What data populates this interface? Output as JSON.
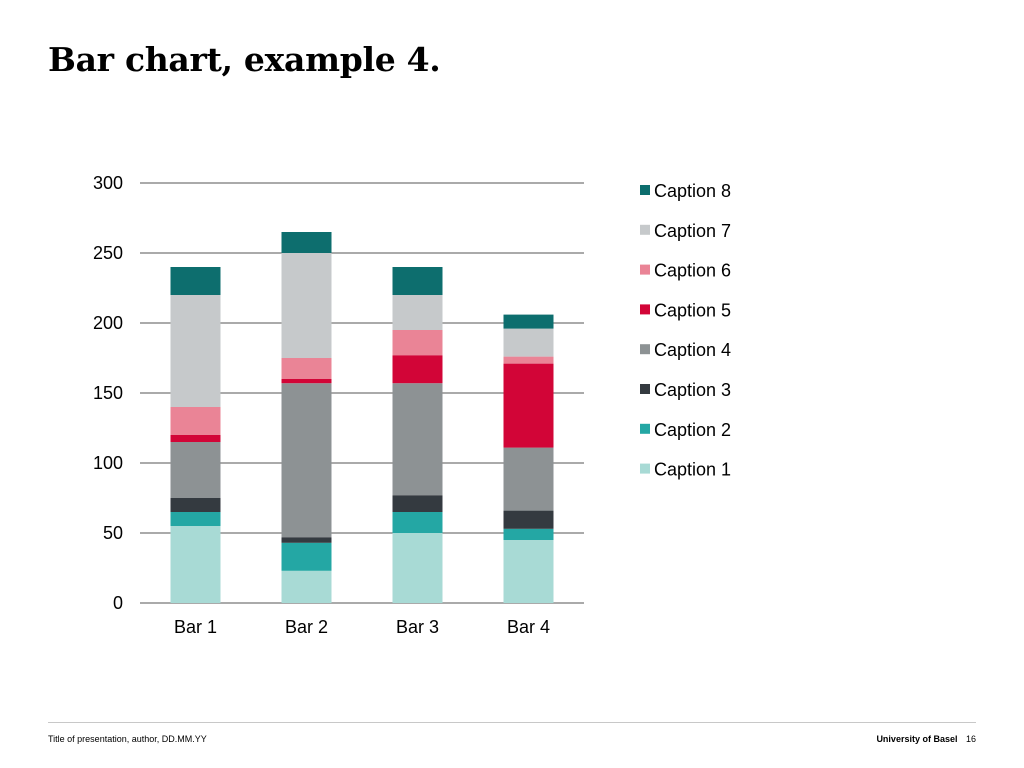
{
  "slide": {
    "title": "Bar chart, example 4.",
    "footer_left": "Title of presentation, author, DD.MM.YY",
    "footer_org": "University of Basel",
    "page_number": "16"
  },
  "colors": {
    "Caption 1": "#a8dad5",
    "Caption 2": "#24a7a4",
    "Caption 3": "#343a40",
    "Caption 4": "#8d9294",
    "Caption 5": "#d20537",
    "Caption 6": "#ea8496",
    "Caption 7": "#c6c9cb",
    "Caption 8": "#0d6e6e",
    "gridline": "#555555"
  },
  "chart_data": {
    "type": "bar",
    "stacked": true,
    "categories": [
      "Bar 1",
      "Bar 2",
      "Bar 3",
      "Bar 4"
    ],
    "ylim": [
      0,
      300
    ],
    "yticks": [
      0,
      50,
      100,
      150,
      200,
      250,
      300
    ],
    "grid": true,
    "legend_position": "right",
    "series": [
      {
        "name": "Caption 1",
        "values": [
          55,
          23,
          50,
          45
        ]
      },
      {
        "name": "Caption 2",
        "values": [
          10,
          20,
          15,
          8
        ]
      },
      {
        "name": "Caption 3",
        "values": [
          10,
          4,
          12,
          13
        ]
      },
      {
        "name": "Caption 4",
        "values": [
          40,
          110,
          80,
          45
        ]
      },
      {
        "name": "Caption 5",
        "values": [
          5,
          3,
          20,
          60
        ]
      },
      {
        "name": "Caption 6",
        "values": [
          20,
          15,
          18,
          5
        ]
      },
      {
        "name": "Caption 7",
        "values": [
          80,
          75,
          25,
          20
        ]
      },
      {
        "name": "Caption 8",
        "values": [
          20,
          15,
          20,
          10
        ]
      }
    ]
  }
}
